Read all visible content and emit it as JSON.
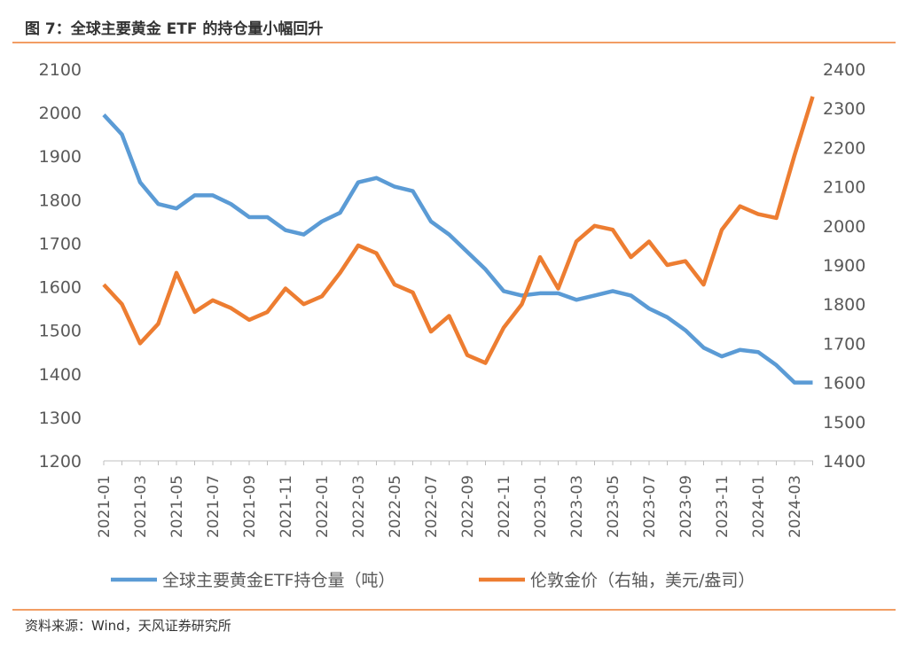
{
  "title": "图 7：全球主要黄金 ETF 的持仓量小幅回升",
  "source": "资料来源：Wind，天风证券研究所",
  "chart_data": {
    "type": "line",
    "x": [
      "2021-01",
      null,
      "2021-03",
      null,
      "2021-05",
      null,
      "2021-07",
      null,
      "2021-09",
      null,
      "2021-11",
      null,
      "2022-01",
      null,
      "2022-03",
      null,
      "2022-05",
      null,
      "2022-07",
      null,
      "2022-09",
      null,
      "2022-11",
      null,
      "2023-01",
      null,
      "2023-03",
      null,
      "2023-05",
      null,
      "2023-07",
      null,
      "2023-09",
      null,
      "2023-11",
      null,
      "2024-01",
      null,
      "2024-03",
      null
    ],
    "series": [
      {
        "name": "全球主要黄金ETF持仓量（吨）",
        "color": "#5b9bd5",
        "axis": "y",
        "values": [
          1995,
          1950,
          1840,
          1790,
          1780,
          1810,
          1810,
          1790,
          1760,
          1760,
          1730,
          1720,
          1750,
          1770,
          1840,
          1850,
          1830,
          1820,
          1750,
          1720,
          1680,
          1640,
          1590,
          1580,
          1585,
          1585,
          1570,
          1580,
          1590,
          1580,
          1550,
          1530,
          1500,
          1460,
          1440,
          1455,
          1450,
          1420,
          1380,
          1380
        ]
      },
      {
        "name": "伦敦金价（右轴，美元/盎司）",
        "color": "#ed7d31",
        "axis": "y2",
        "values": [
          1850,
          1800,
          1700,
          1750,
          1880,
          1780,
          1810,
          1790,
          1760,
          1780,
          1840,
          1800,
          1820,
          1880,
          1950,
          1930,
          1850,
          1830,
          1730,
          1770,
          1670,
          1650,
          1740,
          1800,
          1920,
          1840,
          1960,
          2000,
          1990,
          1920,
          1960,
          1900,
          1910,
          1850,
          1990,
          2050,
          2030,
          2020,
          2180,
          2330
        ]
      }
    ],
    "ylim": [
      1200,
      2100
    ],
    "yticks": [
      1200,
      1300,
      1400,
      1500,
      1600,
      1700,
      1800,
      1900,
      2000,
      2100
    ],
    "y2lim": [
      1400,
      2400
    ],
    "y2ticks": [
      1400,
      1500,
      1600,
      1700,
      1800,
      1900,
      2000,
      2100,
      2200,
      2300,
      2400
    ]
  }
}
